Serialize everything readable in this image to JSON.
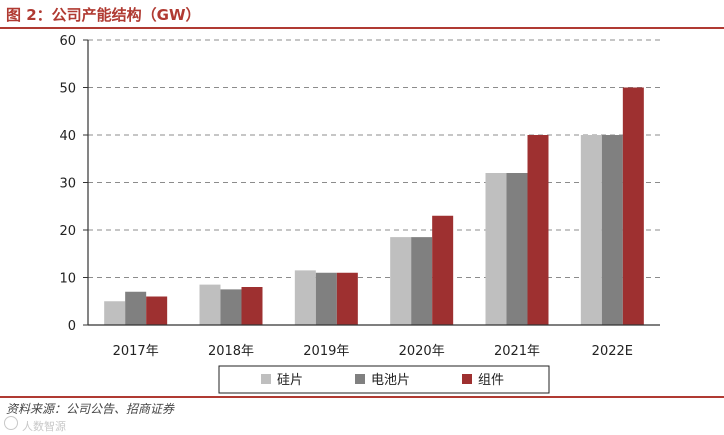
{
  "title": "图 2：公司产能结构（GW）",
  "source": "资料来源：公司公告、招商证券",
  "watermark": "人数智源",
  "chart_data": {
    "type": "bar",
    "categories": [
      "2017年",
      "2018年",
      "2019年",
      "2020年",
      "2021年",
      "2022E"
    ],
    "ylim": [
      0,
      60
    ],
    "yticks": [
      0,
      10,
      20,
      30,
      40,
      50,
      60
    ],
    "grid": true,
    "legend_position": "bottom-center",
    "series": [
      {
        "name": "硅片",
        "color": "#bfbfbf",
        "values": [
          5,
          8.5,
          11.5,
          18.5,
          32,
          40
        ]
      },
      {
        "name": "电池片",
        "color": "#808080",
        "values": [
          7,
          7.5,
          11,
          18.5,
          32,
          40
        ]
      },
      {
        "name": "组件",
        "color": "#9e3030",
        "values": [
          6,
          8,
          11,
          23,
          40,
          50
        ]
      }
    ]
  }
}
